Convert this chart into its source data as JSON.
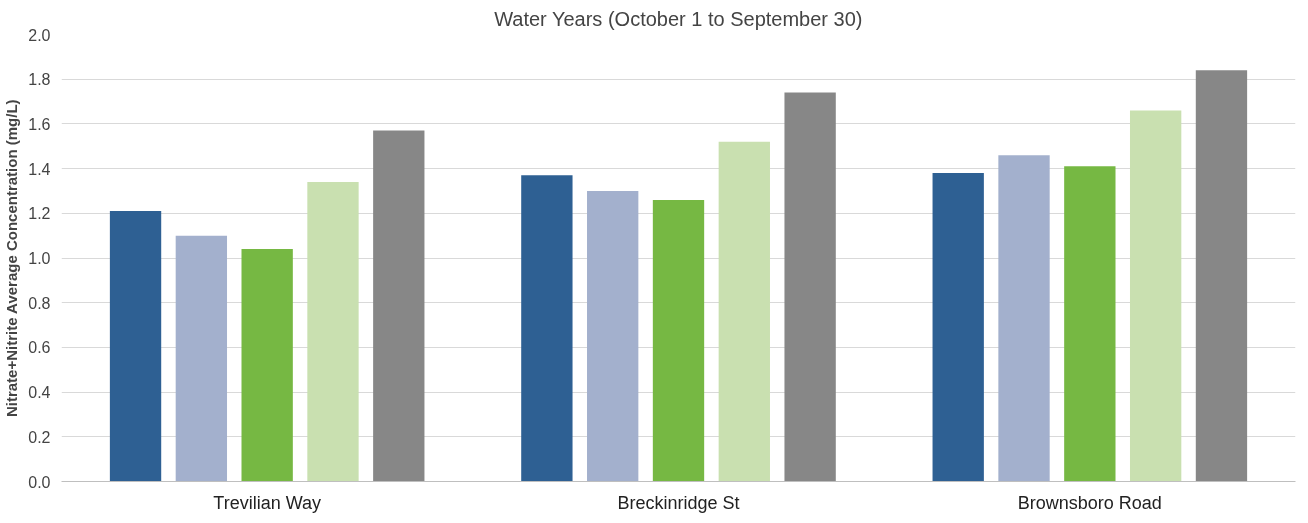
{
  "chart_data": {
    "type": "bar",
    "title": "Water Years (October 1 to September 30)",
    "ylabel": "Nitrate+Nitrite Average Concentration (mg/L)",
    "categories": [
      "Trevilian Way",
      "Breckinridge St",
      "Brownsboro Road"
    ],
    "series": [
      {
        "color": "#2e6093",
        "values": [
          1.21,
          1.37,
          1.38
        ]
      },
      {
        "color": "#a3b0cd",
        "values": [
          1.1,
          1.3,
          1.46
        ]
      },
      {
        "color": "#76b843",
        "values": [
          1.04,
          1.26,
          1.41
        ]
      },
      {
        "color": "#c9e0b0",
        "values": [
          1.34,
          1.52,
          1.66
        ]
      },
      {
        "color": "#878787",
        "values": [
          1.57,
          1.74,
          1.84
        ]
      }
    ],
    "ylim": [
      0,
      2.0
    ],
    "yticks": [
      {
        "value": 0,
        "label": "0.0"
      },
      {
        "value": 0.2,
        "label": "0.2"
      },
      {
        "value": 0.4,
        "label": "0.4"
      },
      {
        "value": 0.6,
        "label": "0.6"
      },
      {
        "value": 0.8,
        "label": "0.8"
      },
      {
        "value": 1.0,
        "label": "1.0"
      },
      {
        "value": 1.2,
        "label": "1.2"
      },
      {
        "value": 1.4,
        "label": "1.4"
      },
      {
        "value": 1.6,
        "label": "1.6"
      },
      {
        "value": 1.8,
        "label": "1.8"
      },
      {
        "value": 2.0,
        "label": "2.0"
      }
    ],
    "grid": "y"
  }
}
